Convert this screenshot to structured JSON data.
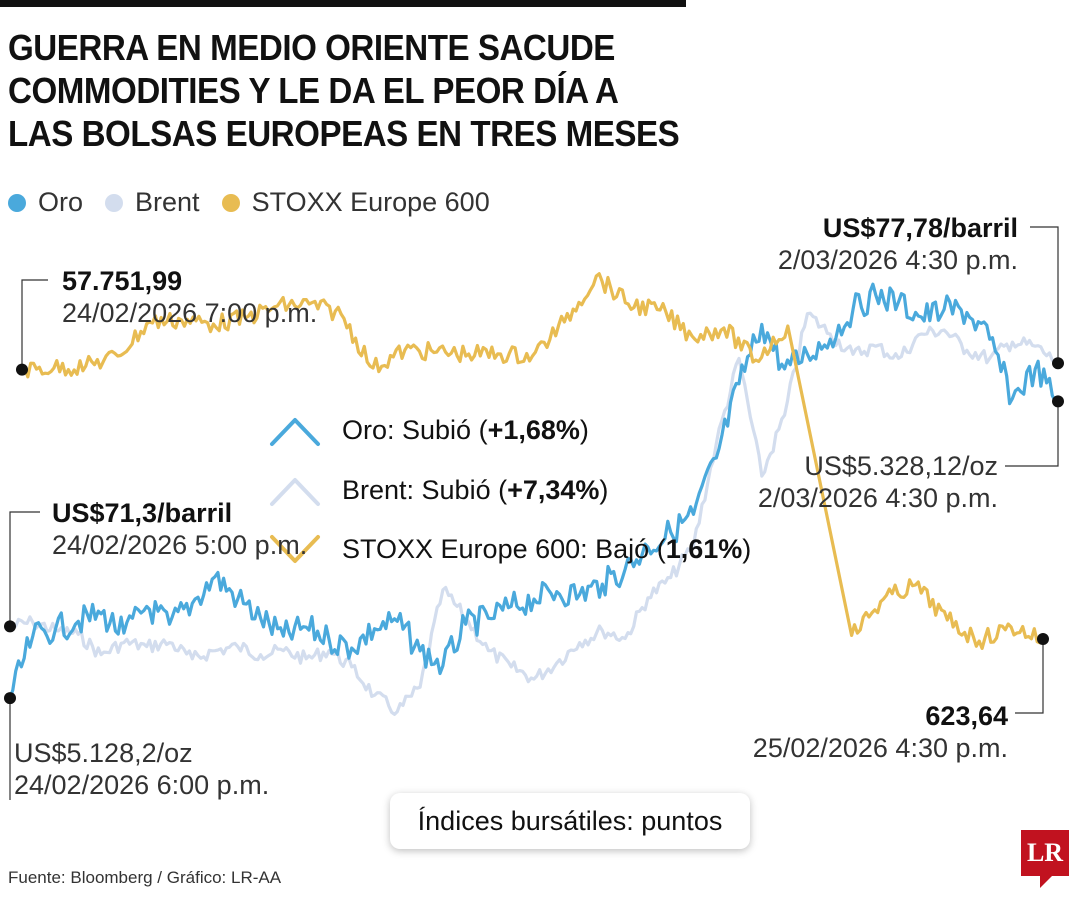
{
  "title_lines": [
    "GUERRA EN MEDIO ORIENTE SACUDE",
    "COMMODITIES Y LE DA EL PEOR DÍA A",
    "LAS BOLSAS EUROPEAS EN TRES MESES"
  ],
  "legend": [
    {
      "label": "Oro",
      "color": "#4aa9dc"
    },
    {
      "label": "Brent",
      "color": "#d3ddee"
    },
    {
      "label": "STOXX Europe 600",
      "color": "#e8bc52"
    }
  ],
  "changes": [
    {
      "series": "Oro",
      "prefix": "Oro: Subió (",
      "value": "+1,68%",
      "suffix": ")",
      "icon": "up-chevron-icon",
      "color": "#4aa9dc"
    },
    {
      "series": "Brent",
      "prefix": "Brent: Subió (",
      "value": "+7,34%",
      "suffix": ")",
      "icon": "up-chevron-icon",
      "color": "#d3ddee"
    },
    {
      "series": "STOXX Europe 600",
      "prefix": "STOXX Europe 600: Bajó (",
      "value": "1,61%",
      "suffix": ")",
      "icon": "down-chevron-icon",
      "color": "#e8bc52"
    }
  ],
  "annotations": {
    "stoxx_start": {
      "value": "57.751,99",
      "date": "24/02/2026 7:00 p.m."
    },
    "brent_start": {
      "value": "US$71,3/barril",
      "date": "24/02/2026 5:00 p.m."
    },
    "oro_start": {
      "value": "US$5.128,2/oz",
      "date": "24/02/2026 6:00 p.m."
    },
    "brent_end": {
      "value": "US$77,78/barril",
      "date": "2/03/2026 4:30 p.m."
    },
    "oro_end": {
      "value": "US$5.328,12/oz",
      "date": "2/03/2026 4:30 p.m."
    },
    "stoxx_end": {
      "value": "623,64",
      "date": "25/02/2026 4:30 p.m."
    }
  },
  "footer": {
    "note": "Índices bursátiles: puntos",
    "source": "Fuente: Bloomberg / Gráfico: LR-AA",
    "logo": "LR"
  },
  "chart_data": {
    "type": "line",
    "title": "GUERRA EN MEDIO ORIENTE SACUDE COMMODITIES Y LE DA EL PEOR DÍA A LAS BOLSAS EUROPEAS EN TRES MESES",
    "xlabel": "",
    "ylabel": "",
    "x_range": [
      "24/02/2026",
      "2/03/2026"
    ],
    "series": [
      {
        "name": "Oro",
        "unit": "US$/oz",
        "color": "#4aa9dc",
        "values": [
          5128.2,
          5170,
          5175,
          5180,
          5185,
          5172,
          5190,
          5178,
          5192,
          5210,
          5195,
          5182,
          5170,
          5176,
          5168,
          5162,
          5175,
          5180,
          5160,
          5150,
          5178,
          5182,
          5190,
          5195,
          5200,
          5198,
          5205,
          5215,
          5230,
          5240,
          5252,
          5290,
          5340,
          5380,
          5350,
          5360,
          5370,
          5390,
          5400,
          5395,
          5385,
          5390,
          5388,
          5370,
          5330,
          5350,
          5328.12
        ]
      },
      {
        "name": "Brent",
        "unit": "US$/barril",
        "color": "#d3ddee",
        "values": [
          71.3,
          71.4,
          71.2,
          71.1,
          70.6,
          70.9,
          70.8,
          70.9,
          70.5,
          70.7,
          70.8,
          70.6,
          70.7,
          70.5,
          70.7,
          70.3,
          69.6,
          69.2,
          69.8,
          72.2,
          71.5,
          70.7,
          70.3,
          70.0,
          70.4,
          70.9,
          71.2,
          71.0,
          72.0,
          72.5,
          73.3,
          75.8,
          77.9,
          75.0,
          76.5,
          79.0,
          78.5,
          78.0,
          78.2,
          77.9,
          78.5,
          78.6,
          78.1,
          77.9,
          78.3,
          78.2,
          77.78
        ]
      },
      {
        "name": "STOXX Europe 600",
        "unit": "puntos",
        "color": "#e8bc52",
        "values": [
          57751.99,
          57760,
          57770,
          57820,
          57990,
          58000,
          57980,
          58010,
          58070,
          58080,
          58030,
          57760,
          57850,
          57840,
          57830,
          57830,
          57820,
          57990,
          58220,
          58080,
          58050,
          57920,
          57960,
          57800,
          57970,
          null,
          623.9,
          626.5,
          627.5,
          625.0,
          623.5,
          624.5,
          623.64
        ]
      }
    ]
  }
}
